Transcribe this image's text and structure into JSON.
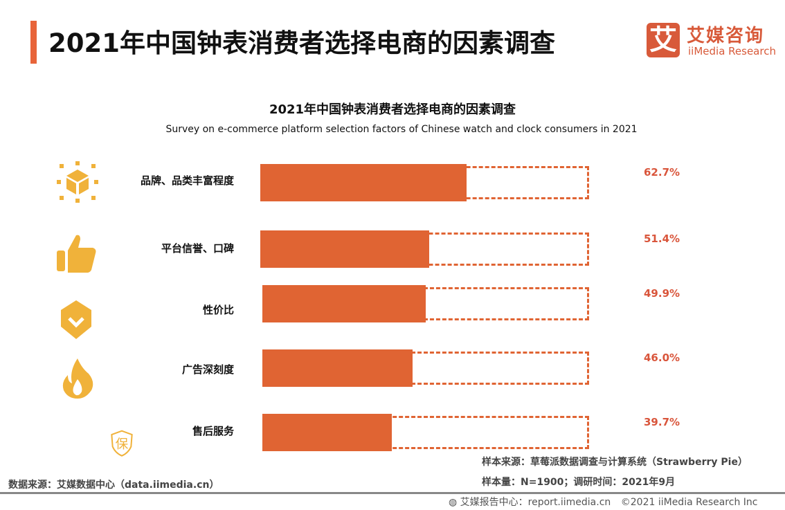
{
  "header": {
    "title": "2021年中国钟表消费者选择电商的因素调查",
    "accent_color": "#e8643a"
  },
  "logo": {
    "glyph": "艾",
    "cn": "艾媒咨询",
    "en": "iiMedia Research",
    "color": "#d85a3a"
  },
  "chart_data": {
    "type": "bar",
    "orientation": "horizontal",
    "title": "2021年中国钟表消费者选择电商的因素调查",
    "subtitle": "Survey on e-commerce platform selection factors of Chinese watch and clock consumers in 2021",
    "categories": [
      "品牌、品类丰富程度",
      "平台信誉、口碑",
      "性价比",
      "广告深刻度",
      "售后服务"
    ],
    "values": [
      62.7,
      51.4,
      49.9,
      46.0,
      39.7
    ],
    "labels": [
      "62.7%",
      "51.4%",
      "49.9%",
      "46.0%",
      "39.7%"
    ],
    "icons": [
      "cube-network-icon",
      "thumbs-up-icon",
      "check-badge-icon",
      "flame-icon",
      "shield-bao-icon"
    ],
    "xlim": [
      0,
      100
    ],
    "bar_color": "#e06433",
    "icon_color": "#f0b23a",
    "value_color": "#d9553b"
  },
  "footer": {
    "sample_source": "样本来源：草莓派数据调查与计算系统（Strawberry Pie）",
    "sample_size": "样本量：N=1900；调研时间：2021年9月",
    "data_source": "数据来源：艾媒数据中心（data.iimedia.cn）",
    "report": "艾媒报告中心：report.iimedia.cn",
    "copyright": "©2021  iiMedia Research  Inc"
  }
}
